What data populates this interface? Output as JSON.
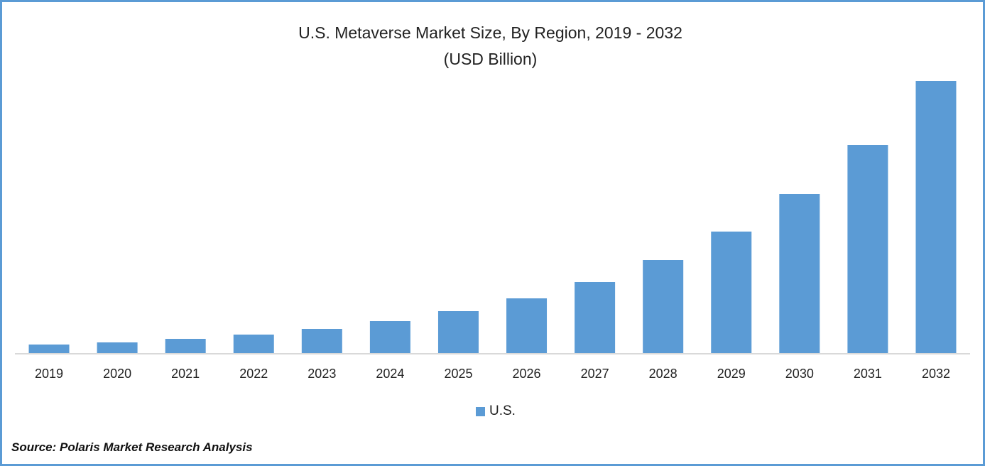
{
  "chart_data": {
    "type": "bar",
    "title": "U.S. Metaverse Market Size, By Region, 2019 - 2032",
    "subtitle": "(USD Billion)",
    "categories": [
      "2019",
      "2020",
      "2021",
      "2022",
      "2023",
      "2024",
      "2025",
      "2026",
      "2027",
      "2028",
      "2029",
      "2030",
      "2031",
      "2032"
    ],
    "series": [
      {
        "name": "U.S.",
        "values": [
          12,
          15,
          20,
          26,
          34,
          45,
          59,
          77,
          100,
          131,
          171,
          224,
          293,
          383
        ]
      }
    ],
    "ylim": [
      0,
      400
    ],
    "y_axis_shown": false,
    "grid": false,
    "legend": "bottom",
    "bar_color": "#5b9bd5",
    "frame_color": "#5b9bd5"
  },
  "source": "Source: Polaris Market Research Analysis"
}
